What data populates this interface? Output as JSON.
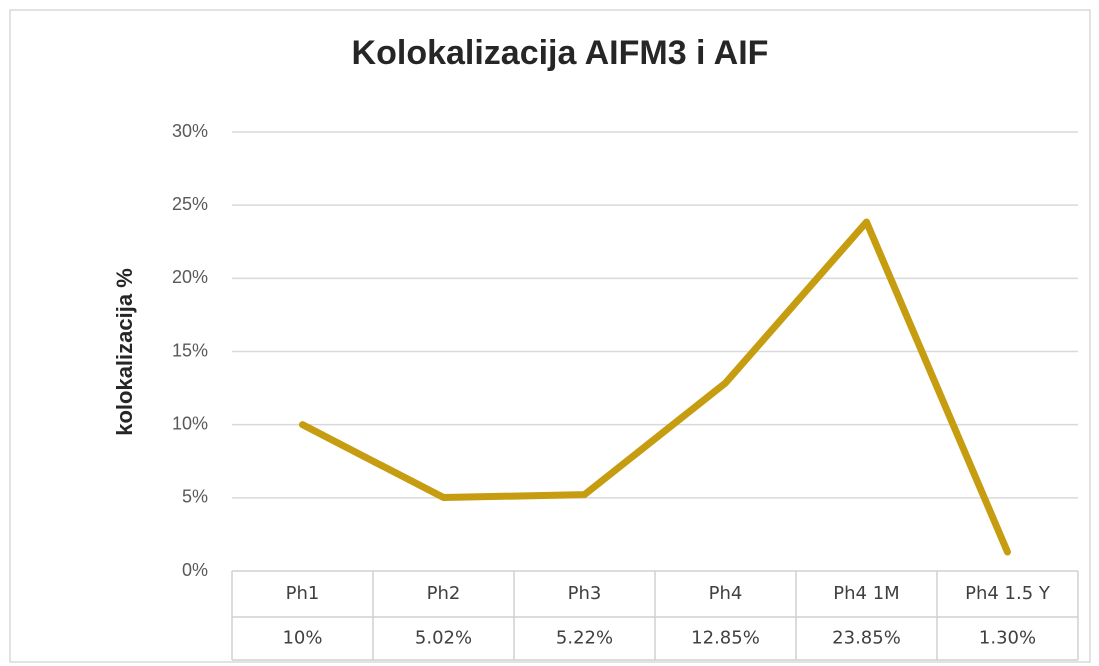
{
  "chart_data": {
    "type": "line",
    "title": "Kolokalizacija AIFM3 i AIF",
    "y_label": "kolokalizacija %",
    "categories": [
      "Ph1",
      "Ph2",
      "Ph3",
      "Ph4",
      "Ph4 1M",
      "Ph4 1.5 Y"
    ],
    "values": [
      10,
      5.02,
      5.22,
      12.85,
      23.85,
      1.3
    ],
    "value_labels": [
      "10%",
      "5.02%",
      "5.22%",
      "12.85%",
      "23.85%",
      "1.30%"
    ],
    "color": "#c69c10",
    "ylim": [
      0,
      30
    ],
    "yticks": [
      {
        "value": 0,
        "label": "0%"
      },
      {
        "value": 5,
        "label": "5%"
      },
      {
        "value": 10,
        "label": "10%"
      },
      {
        "value": 15,
        "label": "15%"
      },
      {
        "value": 20,
        "label": "20%"
      },
      {
        "value": 25,
        "label": "25%"
      },
      {
        "value": 30,
        "label": "30%"
      }
    ],
    "grid": true
  }
}
